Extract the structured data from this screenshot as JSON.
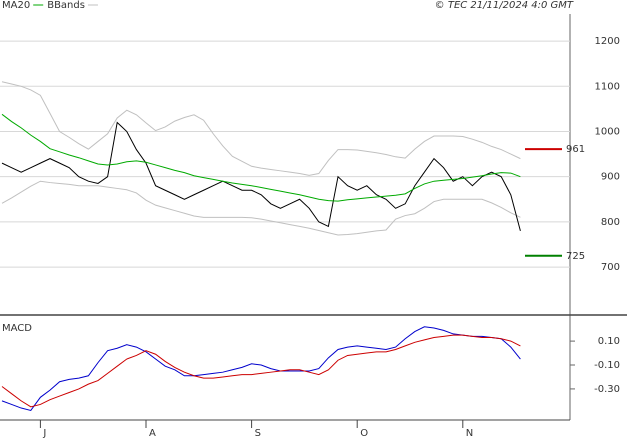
{
  "chart_data": {
    "type": "line",
    "title": "© TEC 21/11/2024 4:0 GMT",
    "categories": [
      null,
      null,
      null,
      null,
      "J",
      null,
      null,
      null,
      null,
      null,
      null,
      null,
      null,
      null,
      null,
      "A",
      null,
      null,
      null,
      null,
      null,
      null,
      null,
      null,
      null,
      null,
      "S",
      null,
      null,
      null,
      null,
      null,
      null,
      null,
      null,
      null,
      null,
      "O",
      null,
      null,
      null,
      null,
      null,
      null,
      null,
      null,
      null,
      null,
      "N",
      null,
      null,
      null,
      null,
      null,
      null
    ],
    "ylim": [
      605,
      1260
    ],
    "yticks": [
      700,
      800,
      900,
      1000,
      1100,
      1200
    ],
    "grid": true,
    "series": [
      {
        "color": "#000000",
        "values": [
          930,
          920,
          910,
          920,
          930,
          940,
          930,
          920,
          900,
          890,
          885,
          900,
          1020,
          1000,
          960,
          930,
          880,
          870,
          860,
          850,
          860,
          870,
          880,
          890,
          880,
          870,
          870,
          860,
          840,
          830,
          840,
          850,
          830,
          800,
          790,
          900,
          880,
          870,
          880,
          860,
          850,
          830,
          840,
          880,
          910,
          940,
          920,
          890,
          900,
          880,
          900,
          910,
          900,
          860,
          780
        ]
      },
      {
        "name": "MA20",
        "color": "#00aa00",
        "values": [
          1038,
          1022,
          1008,
          992,
          978,
          962,
          955,
          948,
          942,
          935,
          928,
          926,
          928,
          933,
          935,
          932,
          926,
          920,
          914,
          909,
          902,
          898,
          894,
          890,
          886,
          883,
          880,
          876,
          872,
          868,
          864,
          860,
          855,
          850,
          847,
          846,
          849,
          851,
          853,
          855,
          857,
          859,
          862,
          874,
          884,
          890,
          892,
          894,
          896,
          899,
          902,
          906,
          909,
          908,
          900
        ]
      },
      {
        "name": "MACD",
        "axis": "y2",
        "color": "#0000cc",
        "values": [
          -0.4,
          -0.43,
          -0.46,
          -0.48,
          -0.37,
          -0.31,
          -0.24,
          -0.22,
          -0.21,
          -0.19,
          -0.08,
          0.02,
          0.04,
          0.07,
          0.05,
          0.01,
          -0.05,
          -0.11,
          -0.14,
          -0.19,
          -0.19,
          -0.18,
          -0.17,
          -0.16,
          -0.14,
          -0.12,
          -0.09,
          -0.1,
          -0.13,
          -0.15,
          -0.15,
          -0.15,
          -0.15,
          -0.13,
          -0.04,
          0.03,
          0.05,
          0.06,
          0.05,
          0.04,
          0.03,
          0.05,
          0.12,
          0.18,
          0.22,
          0.21,
          0.19,
          0.16,
          0.15,
          0.14,
          0.14,
          0.13,
          0.12,
          0.05,
          -0.05
        ]
      },
      {
        "axis": "y2",
        "color": "#cc0000",
        "values": [
          -0.28,
          -0.34,
          -0.4,
          -0.45,
          -0.43,
          -0.39,
          -0.36,
          -0.33,
          -0.3,
          -0.26,
          -0.23,
          -0.17,
          -0.11,
          -0.05,
          -0.02,
          0.02,
          -0.01,
          -0.07,
          -0.12,
          -0.16,
          -0.19,
          -0.21,
          -0.21,
          -0.2,
          -0.19,
          -0.18,
          -0.18,
          -0.17,
          -0.16,
          -0.15,
          -0.14,
          -0.14,
          -0.16,
          -0.18,
          -0.14,
          -0.06,
          -0.02,
          -0.01,
          0.0,
          0.01,
          0.01,
          0.03,
          0.06,
          0.09,
          0.11,
          0.13,
          0.14,
          0.15,
          0.15,
          0.14,
          0.13,
          0.13,
          0.12,
          0.1,
          0.06
        ]
      }
    ],
    "bands": {
      "name": "BBands",
      "color": "#c0c0c0",
      "upper": [
        1110,
        1105,
        1100,
        1092,
        1080,
        1040,
        1000,
        987,
        973,
        961,
        978,
        995,
        1030,
        1047,
        1037,
        1019,
        1002,
        1010,
        1023,
        1031,
        1037,
        1025,
        995,
        968,
        945,
        934,
        923,
        919,
        916,
        913,
        910,
        907,
        903,
        907,
        936,
        960,
        960,
        959,
        956,
        953,
        949,
        944,
        941,
        961,
        978,
        990,
        990,
        990,
        989,
        983,
        976,
        967,
        960,
        950,
        940
      ],
      "lower": [
        841,
        853,
        866,
        879,
        890,
        887,
        885,
        883,
        880,
        880,
        880,
        877,
        874,
        871,
        864,
        848,
        837,
        831,
        825,
        819,
        813,
        810,
        810,
        810,
        810,
        810,
        809,
        806,
        802,
        798,
        794,
        790,
        786,
        781,
        776,
        771,
        772,
        774,
        777,
        780,
        782,
        806,
        814,
        818,
        830,
        845,
        850,
        850,
        850,
        850,
        850,
        842,
        832,
        820,
        810
      ]
    },
    "levels": [
      {
        "value": 961,
        "color": "#cc0000"
      },
      {
        "value": 725,
        "color": "#008000"
      }
    ],
    "y2lim": [
      -0.56,
      0.31
    ],
    "y2ticks": [
      {
        "value": 0.1,
        "label": "0.10"
      },
      {
        "value": -0.1,
        "label": "-0.10"
      },
      {
        "value": -0.3,
        "label": "-0.30"
      }
    ]
  }
}
